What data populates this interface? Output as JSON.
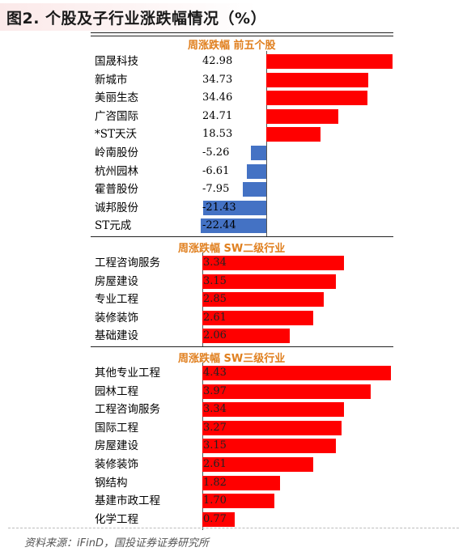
{
  "title": "图2. 个股及子行业涨跌幅情况（%）",
  "source": "资料来源：iFinD，国投证券证券研究所",
  "chart_data": [
    {
      "type": "bar",
      "title": "周涨跌幅 前五个股",
      "categories": [
        "国晟科技",
        "新城市",
        "美丽生态",
        "广咨国际",
        "*ST天沃",
        "岭南股份",
        "杭州园林",
        "霍普股份",
        "诚邦股份",
        "ST元成"
      ],
      "values": [
        42.98,
        34.73,
        34.46,
        24.71,
        18.53,
        -5.26,
        -6.61,
        -7.95,
        -21.43,
        -22.44
      ],
      "value_labels": [
        "42.98",
        "34.73",
        "34.46",
        "24.71",
        "18.53",
        "-5.26",
        "-6.61",
        "-7.95",
        "-21.43",
        "-22.44"
      ],
      "colors": {
        "positive": "#ff0000",
        "negative": "#4472c4"
      }
    },
    {
      "type": "bar",
      "title": "周涨跌幅 SW二级行业",
      "categories": [
        "工程咨询服务",
        "房屋建设",
        "专业工程",
        "装修装饰",
        "基础建设"
      ],
      "values": [
        3.34,
        3.15,
        2.85,
        2.61,
        2.06
      ],
      "value_labels": [
        "3.34",
        "3.15",
        "2.85",
        "2.61",
        "2.06"
      ],
      "colors": {
        "positive": "#ff0000"
      }
    },
    {
      "type": "bar",
      "title": "周涨跌幅 SW三级行业",
      "categories": [
        "其他专业工程",
        "园林工程",
        "工程咨询服务",
        "国际工程",
        "房屋建设",
        "装修装饰",
        "钢结构",
        "基建市政工程",
        "化学工程"
      ],
      "values": [
        4.43,
        3.97,
        3.34,
        3.27,
        3.15,
        2.61,
        1.82,
        1.7,
        0.77
      ],
      "value_labels": [
        "4.43",
        "3.97",
        "3.34",
        "3.27",
        "3.15",
        "2.61",
        "1.82",
        "1.70",
        "0.77"
      ],
      "colors": {
        "positive": "#ff0000"
      }
    }
  ]
}
